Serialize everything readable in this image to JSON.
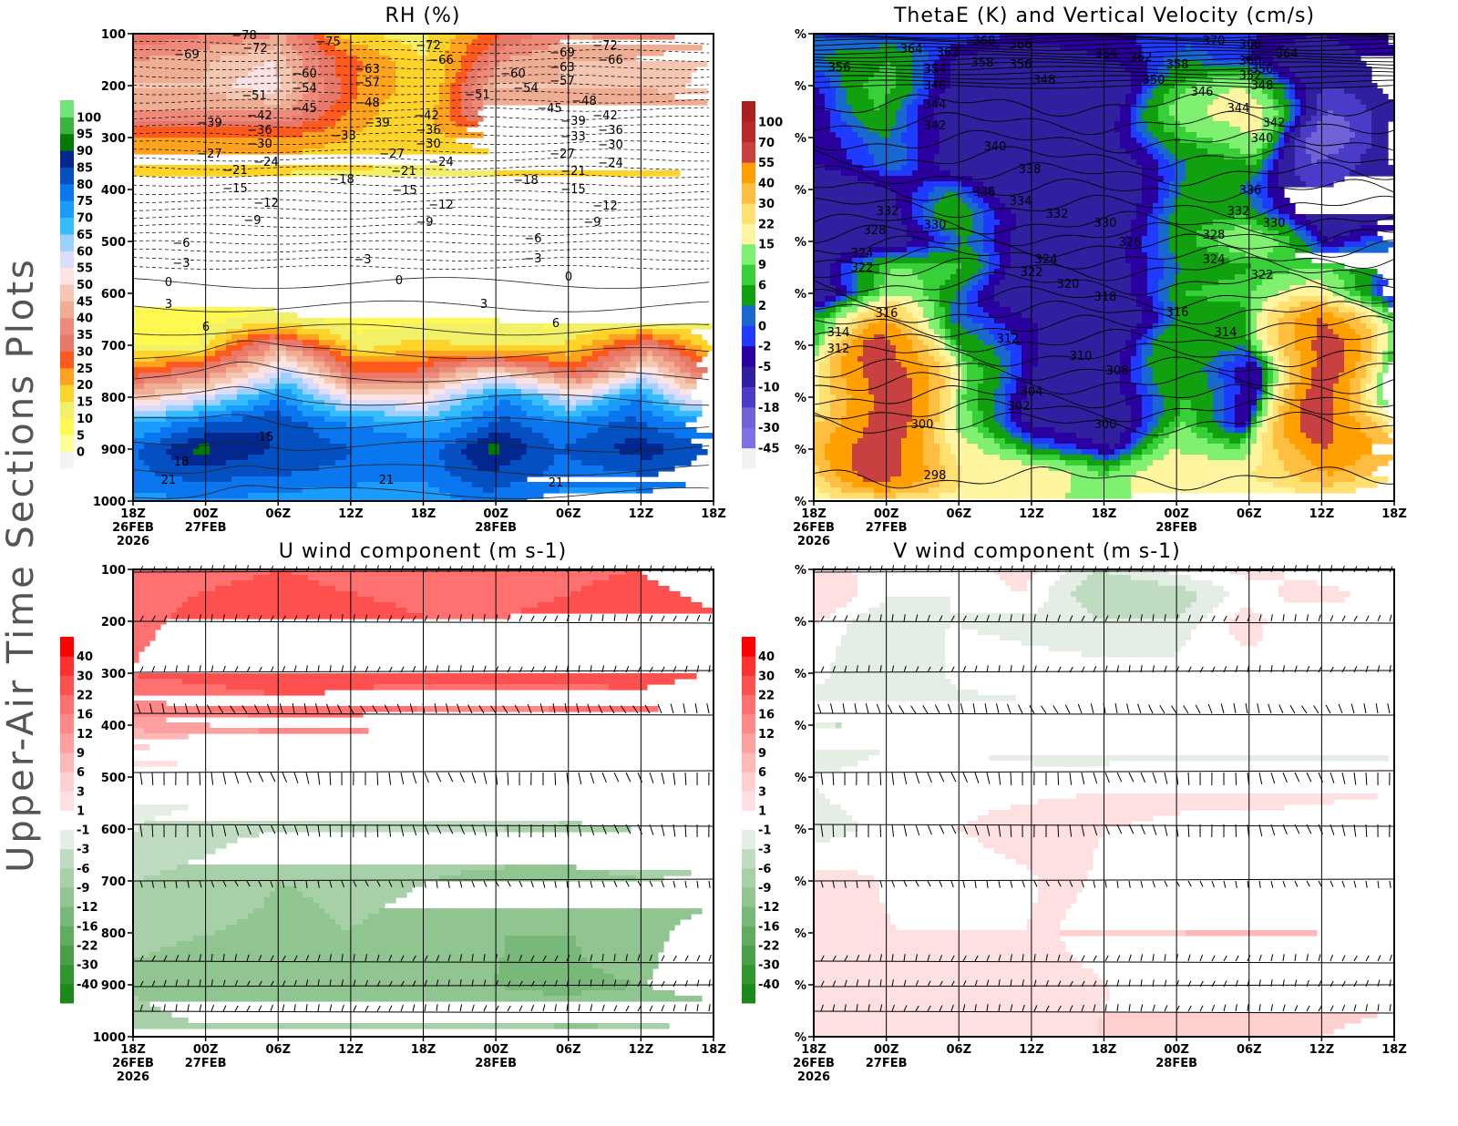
{
  "side_title": "Upper-Air Time Sections Plots",
  "x_tick_labels": [
    {
      "time": "18Z",
      "date": "26FEB",
      "year": "2026"
    },
    {
      "time": "00Z",
      "date": "27FEB",
      "year": ""
    },
    {
      "time": "06Z",
      "date": "",
      "year": ""
    },
    {
      "time": "12Z",
      "date": "",
      "year": ""
    },
    {
      "time": "18Z",
      "date": "",
      "year": ""
    },
    {
      "time": "00Z",
      "date": "28FEB",
      "year": ""
    },
    {
      "time": "06Z",
      "date": "",
      "year": ""
    },
    {
      "time": "12Z",
      "date": "",
      "year": ""
    },
    {
      "time": "18Z",
      "date": "",
      "year": ""
    }
  ],
  "chart_data": [
    {
      "type": "heatmap",
      "title": "RH (%)",
      "x_axis": "time",
      "y_axis": "pressure (hPa), inverted",
      "y_tick_labels": [
        "100",
        "200",
        "300",
        "400",
        "500",
        "600",
        "700",
        "800",
        "900",
        "1000"
      ],
      "ylim": [
        1000,
        100
      ],
      "pressure_levels": [
        100,
        150,
        200,
        250,
        300,
        350,
        400,
        500,
        600,
        650,
        700,
        750,
        800,
        850,
        900,
        950,
        1000
      ],
      "values": [
        [
          30,
          35,
          40,
          18,
          12,
          30,
          40,
          38,
          40
        ],
        [
          40,
          45,
          50,
          28,
          15,
          40,
          45,
          45,
          50
        ],
        [
          45,
          45,
          55,
          25,
          15,
          45,
          45,
          45,
          55
        ],
        [
          40,
          40,
          40,
          22,
          15,
          40,
          40,
          40,
          40
        ],
        [
          25,
          25,
          25,
          20,
          15,
          25,
          25,
          25,
          25
        ],
        [
          18,
          18,
          17,
          16,
          15,
          17,
          18,
          18,
          16
        ],
        [
          12,
          12,
          12,
          12,
          12,
          12,
          12,
          12,
          12
        ],
        [
          8,
          8,
          8,
          8,
          8,
          8,
          8,
          8,
          8
        ],
        [
          7,
          7,
          7,
          7,
          7,
          7,
          7,
          7,
          7
        ],
        [
          8,
          8,
          12,
          8,
          8,
          10,
          8,
          8,
          8
        ],
        [
          10,
          10,
          40,
          12,
          18,
          12,
          15,
          35,
          12
        ],
        [
          25,
          35,
          60,
          30,
          30,
          50,
          30,
          55,
          30
        ],
        [
          45,
          60,
          75,
          55,
          50,
          75,
          55,
          75,
          50
        ],
        [
          70,
          80,
          85,
          75,
          70,
          82,
          75,
          82,
          70
        ],
        [
          80,
          92,
          85,
          80,
          78,
          92,
          80,
          88,
          78
        ],
        [
          78,
          82,
          80,
          78,
          76,
          84,
          78,
          80,
          76
        ],
        [
          72,
          75,
          72,
          70,
          70,
          78,
          70,
          72,
          70
        ]
      ],
      "colorbar": {
        "labels": [
          "0",
          "5",
          "10",
          "15",
          "20",
          "25",
          "30",
          "35",
          "40",
          "45",
          "50",
          "55",
          "60",
          "65",
          "70",
          "75",
          "80",
          "85",
          "90",
          "95",
          "100"
        ],
        "thresholds": [
          0,
          5,
          10,
          15,
          20,
          25,
          30,
          35,
          40,
          45,
          50,
          55,
          60,
          65,
          70,
          75,
          80,
          85,
          90,
          95,
          100
        ],
        "colors": [
          "#f4f4f4",
          "#ffff99",
          "#fff850",
          "#f2f066",
          "#ffd42a",
          "#ffa21e",
          "#ff5a1e",
          "#e87868",
          "#ee8a7a",
          "#efae94",
          "#f5c6b2",
          "#fde3e3",
          "#d9ddfb",
          "#9dd0ff",
          "#36bdff",
          "#1a9cff",
          "#0a76ef",
          "#044fc2",
          "#022890",
          "#007a00",
          "#3cb43c",
          "#72e27a"
        ]
      },
      "contour_labels": [
        -69,
        -72,
        -75,
        -78,
        -60,
        -54,
        -45,
        -51,
        -42,
        -36,
        -30,
        -39,
        -27,
        -21,
        -15,
        -24,
        -12,
        -9,
        -63,
        -57,
        -48,
        -39,
        -33,
        -18,
        -72,
        -66,
        -51,
        -42,
        -36,
        -30,
        -27,
        -21,
        -15,
        -24,
        -12,
        -9,
        -60,
        -54,
        -45,
        -69,
        -63,
        -57,
        -48,
        -39,
        -33,
        -27,
        -21,
        -15,
        -18,
        -72,
        -66,
        -42,
        -36,
        -30,
        -24,
        -12,
        -9,
        -6,
        -3,
        0,
        3,
        6,
        -3,
        0,
        3,
        -6,
        -3,
        0,
        6,
        18,
        21,
        15,
        21,
        21
      ]
    },
    {
      "type": "heatmap",
      "title": "ThetaE (K) and Vertical Velocity (cm/s)",
      "x_axis": "time",
      "y_tick_labels": [
        "%",
        "%",
        "%",
        "%",
        "%",
        "%",
        "%",
        "%",
        "%",
        "%"
      ],
      "pressure_levels": [
        100,
        150,
        200,
        250,
        300,
        350,
        400,
        450,
        500,
        550,
        600,
        650,
        700,
        750,
        800,
        850,
        900,
        950,
        1000
      ],
      "values": [
        [
          0,
          -2,
          0,
          -2,
          -2,
          -2,
          -2,
          -5,
          -2
        ],
        [
          2,
          6,
          -5,
          -10,
          -5,
          2,
          -2,
          -10,
          -2
        ],
        [
          -2,
          9,
          -5,
          -10,
          -10,
          6,
          15,
          -10,
          -2
        ],
        [
          -5,
          6,
          -10,
          -10,
          -10,
          9,
          22,
          -18,
          -5
        ],
        [
          -5,
          2,
          -10,
          -10,
          -10,
          6,
          15,
          -30,
          -5
        ],
        [
          -5,
          2,
          -10,
          -10,
          -10,
          2,
          6,
          -18,
          -5
        ],
        [
          -10,
          -5,
          2,
          -10,
          -10,
          2,
          2,
          -10,
          -5
        ],
        [
          -10,
          -10,
          6,
          -10,
          -10,
          2,
          6,
          -10,
          -5
        ],
        [
          -10,
          -10,
          2,
          -10,
          -10,
          2,
          15,
          -5,
          2
        ],
        [
          -10,
          9,
          6,
          -10,
          -10,
          2,
          6,
          9,
          2
        ],
        [
          -10,
          15,
          2,
          -10,
          -10,
          6,
          9,
          22,
          -5
        ],
        [
          6,
          40,
          2,
          -5,
          -10,
          2,
          2,
          55,
          2
        ],
        [
          6,
          70,
          6,
          -5,
          -10,
          6,
          2,
          70,
          2
        ],
        [
          9,
          70,
          9,
          -5,
          -10,
          6,
          -5,
          70,
          6
        ],
        [
          15,
          70,
          9,
          -5,
          -10,
          6,
          -5,
          70,
          6
        ],
        [
          30,
          70,
          15,
          -5,
          -10,
          9,
          -5,
          70,
          15
        ],
        [
          40,
          70,
          22,
          2,
          -5,
          15,
          9,
          55,
          30
        ],
        [
          22,
          70,
          22,
          22,
          9,
          22,
          22,
          40,
          22
        ],
        [
          15,
          22,
          15,
          15,
          15,
          15,
          15,
          15,
          15
        ]
      ],
      "colorbar": {
        "labels": [
          "-45",
          "-30",
          "-18",
          "-10",
          "-5",
          "-2",
          "0",
          "2",
          "6",
          "9",
          "15",
          "22",
          "30",
          "40",
          "55",
          "70",
          "100"
        ],
        "thresholds": [
          -45,
          -30,
          -18,
          -10,
          -5,
          -2,
          0,
          2,
          6,
          9,
          15,
          22,
          30,
          40,
          55,
          70,
          100
        ],
        "colors": [
          "#f2f2f2",
          "#8070e8",
          "#7262d8",
          "#4a3cc8",
          "#3020a0",
          "#2a00a0",
          "#1e3cff",
          "#1868d0",
          "#10a010",
          "#38d038",
          "#80f070",
          "#fff5a0",
          "#ffe070",
          "#ffbe40",
          "#ffa000",
          "#c84040",
          "#b82a2a",
          "#a82020"
        ]
      },
      "contour_labels": [
        364,
        362,
        368,
        366,
        358,
        356,
        356,
        354,
        348,
        346,
        344,
        342,
        340,
        338,
        336,
        334,
        332,
        332,
        330,
        328,
        324,
        322,
        316,
        314,
        312,
        300,
        298,
        330,
        326,
        324,
        322,
        320,
        318,
        312,
        310,
        308,
        304,
        302,
        300,
        364,
        362,
        358,
        350,
        370,
        368,
        364,
        360,
        356,
        352,
        348,
        346,
        344,
        342,
        340,
        336,
        332,
        330,
        328,
        324,
        322,
        316,
        314
      ]
    },
    {
      "type": "heatmap",
      "title": "U wind component (m s-1)",
      "x_axis": "time",
      "y_tick_labels": [
        "100",
        "200",
        "300",
        "400",
        "500",
        "600",
        "700",
        "800",
        "900",
        "1000"
      ],
      "ylim": [
        1000,
        100
      ],
      "pressure_levels": [
        100,
        200,
        300,
        400,
        450,
        500,
        550,
        600,
        700,
        800,
        900,
        1000
      ],
      "values": [
        [
          20,
          20,
          22,
          20,
          18,
          18,
          20,
          22,
          18
        ],
        [
          20,
          25,
          28,
          25,
          22,
          22,
          24,
          28,
          22
        ],
        [
          22,
          25,
          28,
          26,
          24,
          24,
          25,
          26,
          22
        ],
        [
          10,
          12,
          14,
          14,
          12,
          12,
          12,
          12,
          12
        ],
        [
          5,
          6,
          6,
          6,
          6,
          6,
          6,
          6,
          6
        ],
        [
          0,
          0,
          0,
          0,
          0,
          0,
          0,
          0,
          0
        ],
        [
          -2,
          -3,
          -3,
          -3,
          -3,
          -3,
          -3,
          -3,
          -3
        ],
        [
          -3,
          -5,
          -6,
          -6,
          -6,
          -6,
          -7,
          -6,
          -6
        ],
        [
          -6,
          -7,
          -9,
          -8,
          -9,
          -10,
          -10,
          -9,
          -10
        ],
        [
          -8,
          -9,
          -10,
          -9,
          -10,
          -12,
          -12,
          -10,
          -14
        ],
        [
          -10,
          -12,
          -12,
          -12,
          -12,
          -12,
          -13,
          -12,
          -14
        ],
        [
          -6,
          -8,
          -8,
          -8,
          -8,
          -8,
          -8,
          -8,
          -8
        ]
      ],
      "overlay": "wind barbs",
      "colorbar": {
        "labels": [
          "-40",
          "-30",
          "-22",
          "-16",
          "-12",
          "-9",
          "-6",
          "-3",
          "-1",
          "1",
          "3",
          "6",
          "9",
          "12",
          "16",
          "22",
          "30",
          "40"
        ],
        "thresholds": [
          -40,
          -30,
          -22,
          -16,
          -12,
          -9,
          -6,
          -3,
          -1,
          1,
          3,
          6,
          9,
          12,
          16,
          22,
          30,
          40
        ],
        "colors": [
          "#1a8a1a",
          "#309630",
          "#48a048",
          "#60ac60",
          "#78b878",
          "#90c490",
          "#a8d0a8",
          "#c0dcc0",
          "#e4eee4",
          "#ffffff",
          "#ffe0e0",
          "#ffd0d0",
          "#ffb8b8",
          "#ffa0a0",
          "#ff8888",
          "#ff7070",
          "#ff5050",
          "#ff3030",
          "#ff0000"
        ]
      }
    },
    {
      "type": "heatmap",
      "title": "V wind component (m s-1)",
      "x_axis": "time",
      "y_tick_labels": [
        "%",
        "%",
        "%",
        "%",
        "%",
        "%",
        "%",
        "%",
        "%",
        "%"
      ],
      "pressure_levels": [
        100,
        150,
        200,
        300,
        400,
        450,
        500,
        600,
        700,
        800,
        900,
        1000
      ],
      "values": [
        [
          2,
          0,
          0,
          2,
          -3,
          0,
          2,
          0,
          0
        ],
        [
          3,
          -1,
          -1,
          1,
          -6,
          -4,
          0,
          2,
          0
        ],
        [
          1,
          -3,
          -1,
          -2,
          -3,
          -3,
          2,
          -1,
          0
        ],
        [
          0,
          -3,
          0,
          0,
          0,
          0,
          0,
          0,
          0
        ],
        [
          -3,
          -3,
          -3,
          -2,
          -3,
          -3,
          -3,
          -3,
          -3
        ],
        [
          -3,
          -1,
          -1,
          -2,
          -2,
          -2,
          -2,
          -2,
          -2
        ],
        [
          -1,
          0,
          0,
          0,
          0,
          1,
          1,
          1,
          2
        ],
        [
          -2,
          0,
          1,
          2,
          3,
          4,
          4,
          5,
          5
        ],
        [
          2,
          1,
          -1,
          1,
          4,
          5,
          4,
          4,
          5
        ],
        [
          2,
          1,
          1,
          1,
          5,
          6,
          6,
          6,
          4
        ],
        [
          2,
          1,
          2,
          2,
          3,
          4,
          4,
          4,
          4
        ],
        [
          1,
          1,
          3,
          2,
          3,
          3,
          3,
          3,
          2
        ]
      ],
      "overlay": "wind barbs",
      "colorbar": {
        "labels": [
          "-40",
          "-30",
          "-22",
          "-16",
          "-12",
          "-9",
          "-6",
          "-3",
          "-1",
          "1",
          "3",
          "6",
          "9",
          "12",
          "16",
          "22",
          "30",
          "40"
        ],
        "thresholds": [
          -40,
          -30,
          -22,
          -16,
          -12,
          -9,
          -6,
          -3,
          -1,
          1,
          3,
          6,
          9,
          12,
          16,
          22,
          30,
          40
        ],
        "colors": [
          "#1a8a1a",
          "#309630",
          "#48a048",
          "#60ac60",
          "#78b878",
          "#90c490",
          "#a8d0a8",
          "#c0dcc0",
          "#e4eee4",
          "#ffffff",
          "#ffe0e0",
          "#ffd0d0",
          "#ffb8b8",
          "#ffa0a0",
          "#ff8888",
          "#ff7070",
          "#ff5050",
          "#ff3030",
          "#ff0000"
        ]
      }
    }
  ]
}
